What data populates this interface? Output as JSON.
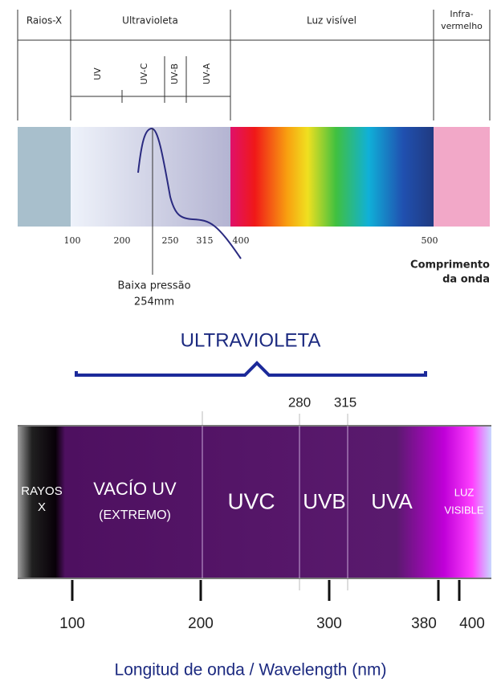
{
  "top": {
    "headers": [
      "Raios-X",
      "Ultravioleta",
      "Luz visível"
    ],
    "header_infra": {
      "line1": "Infra-",
      "line2": "vermelho"
    },
    "sub_bands": [
      "UV",
      "UV-C",
      "UV-B",
      "UV-A"
    ],
    "ticks": [
      100,
      200,
      250,
      315,
      400,
      500
    ],
    "axis_label": {
      "line1": "Comprimento",
      "line2": "da onda"
    },
    "annotation": {
      "line1": "Baixa pressão",
      "line2": "254mm"
    }
  },
  "bottom": {
    "title": "ULTRAVIOLETA",
    "upper_ticks": [
      280,
      315
    ],
    "regions": {
      "rayos": {
        "line1": "RAYOS",
        "line2": "X"
      },
      "vacio": {
        "line1": "VACÍO UV",
        "line2": "(EXTREMO)"
      },
      "uvc": "UVC",
      "uvb": "UVB",
      "uva": "UVA",
      "luz": {
        "line1": "LUZ",
        "line2": "VISIBLE"
      }
    },
    "ticks": [
      100,
      200,
      300,
      380,
      400
    ],
    "axis_label": "Longitud de onda  / Wavelength (nm)"
  }
}
